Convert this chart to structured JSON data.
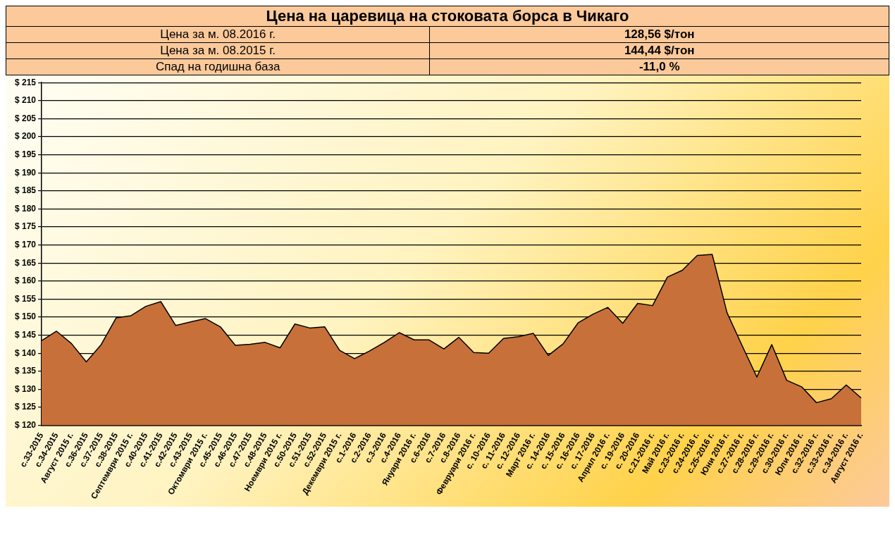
{
  "chart_data": {
    "type": "area",
    "title": "Цена на царевица на стоковата борса в Чикаго",
    "annotations": [
      "Цена за м. 08.2016 г.",
      "128,56 $/тон",
      "Цена за м. 08.2015 г.",
      "144,44 $/тон",
      "Спад на годишна база",
      "-11,0 %"
    ],
    "categories": [
      "с.33-2015",
      "с.34-2015",
      "Август 2015 г.",
      "с.36-2015",
      "с.37-2015",
      "с.38-2015",
      "Септември 2015 г.",
      "с.40-2015",
      "с.41-2015",
      "с.42-2015",
      "с.43-2015",
      "Октомври 2015 г.",
      "с.45-2015",
      "с.46-2015",
      "с.47-2015",
      "с.48-2015",
      "Ноември 2015 г.",
      "с.50-2015",
      "с.51-2015",
      "с.52-2015",
      "Декември 2015 г.",
      "с.1-2016",
      "с.2-2016",
      "с.3-2016",
      "с.4-2016",
      "Януари 2016 г.",
      "с.6-2016",
      "с.7-2016",
      "с.8-2016",
      "Февруари 2016 г.",
      "с. 10-2016",
      "с. 11-2016",
      "с. 12-2016",
      "Март 2016 г.",
      "с. 14-2016",
      "с. 15-2016",
      "с. 16-2016",
      "с. 17-2016",
      "Април 2016 г.",
      "с. 19-2016",
      "с. 20-2016",
      "с.21-2016 г.",
      "Май 2016 г.",
      "с.23-2016 г.",
      "с.24-2016 г.",
      "с.25-2016 г.",
      "Юни 2016 г.",
      "с.27-2016 г.",
      "с.28-2016 г.",
      "с.29-2016 г.",
      "с.30-2016 г.",
      "Юли 2016 г.",
      "с.32-2016 г.",
      "с.33-2016 г.",
      "с.34-2016 г.",
      "Август 2016 г."
    ],
    "series": [
      {
        "color": "#c8703a",
        "values": [
          143.5,
          146.1,
          142.7,
          137.6,
          142.4,
          149.8,
          150.4,
          153.0,
          154.3,
          147.7,
          148.7,
          149.6,
          147.3,
          142.2,
          142.5,
          143.0,
          141.5,
          148.1,
          147.0,
          147.3,
          140.8,
          138.5,
          140.6,
          143.0,
          145.7,
          143.7,
          143.7,
          141.2,
          144.4,
          140.2,
          140.0,
          144.1,
          144.6,
          145.5,
          139.4,
          142.6,
          148.4,
          150.8,
          152.7,
          148.3,
          153.8,
          153.2,
          161.1,
          163.0,
          167.1,
          167.4,
          151.2,
          142.2,
          133.4,
          142.4,
          132.5,
          130.7,
          126.3,
          127.4,
          131.2,
          127.6
        ]
      }
    ],
    "ylim": [
      120,
      215
    ],
    "yticks": [
      {
        "value": 120,
        "label": "$ 120"
      },
      {
        "value": 125,
        "label": "$ 125"
      },
      {
        "value": 130,
        "label": "$ 130"
      },
      {
        "value": 135,
        "label": "$ 135"
      },
      {
        "value": 140,
        "label": "$ 140"
      },
      {
        "value": 145,
        "label": "$ 145"
      },
      {
        "value": 150,
        "label": "$ 150"
      },
      {
        "value": 155,
        "label": "$ 155"
      },
      {
        "value": 160,
        "label": "$ 160"
      },
      {
        "value": 165,
        "label": "$ 165"
      },
      {
        "value": 170,
        "label": "$ 170"
      },
      {
        "value": 175,
        "label": "$ 175"
      },
      {
        "value": 180,
        "label": "$ 180"
      },
      {
        "value": 185,
        "label": "$ 185"
      },
      {
        "value": 190,
        "label": "$ 190"
      },
      {
        "value": 195,
        "label": "$ 195"
      },
      {
        "value": 200,
        "label": "$ 200"
      },
      {
        "value": 205,
        "label": "$ 205"
      },
      {
        "value": 210,
        "label": "$ 210"
      },
      {
        "value": 215,
        "label": "$ 215"
      }
    ],
    "grid": "y",
    "legend": false,
    "marker": "none"
  }
}
